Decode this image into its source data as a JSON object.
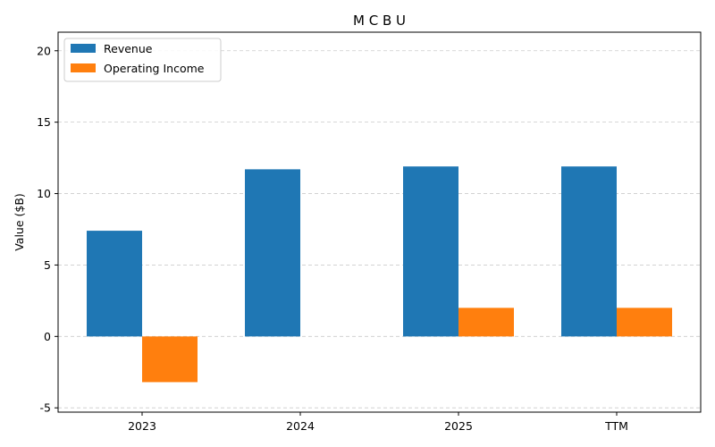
{
  "chart_data": {
    "type": "bar",
    "title": "M C B U",
    "xlabel": "",
    "ylabel": "Value ($B)",
    "categories": [
      "2023",
      "2024",
      "2025",
      "TTM"
    ],
    "series": [
      {
        "name": "Revenue",
        "color": "#1f77b4",
        "values": [
          7.4,
          11.7,
          11.9,
          11.9
        ]
      },
      {
        "name": "Operating Income",
        "color": "#ff7f0e",
        "values": [
          -3.2,
          0,
          2.0,
          2.0
        ]
      }
    ],
    "ylim": [
      -5.3,
      21.3
    ],
    "yticks": [
      -5,
      0,
      5,
      10,
      15,
      20
    ],
    "grid": true,
    "legend_position": "top-left"
  }
}
